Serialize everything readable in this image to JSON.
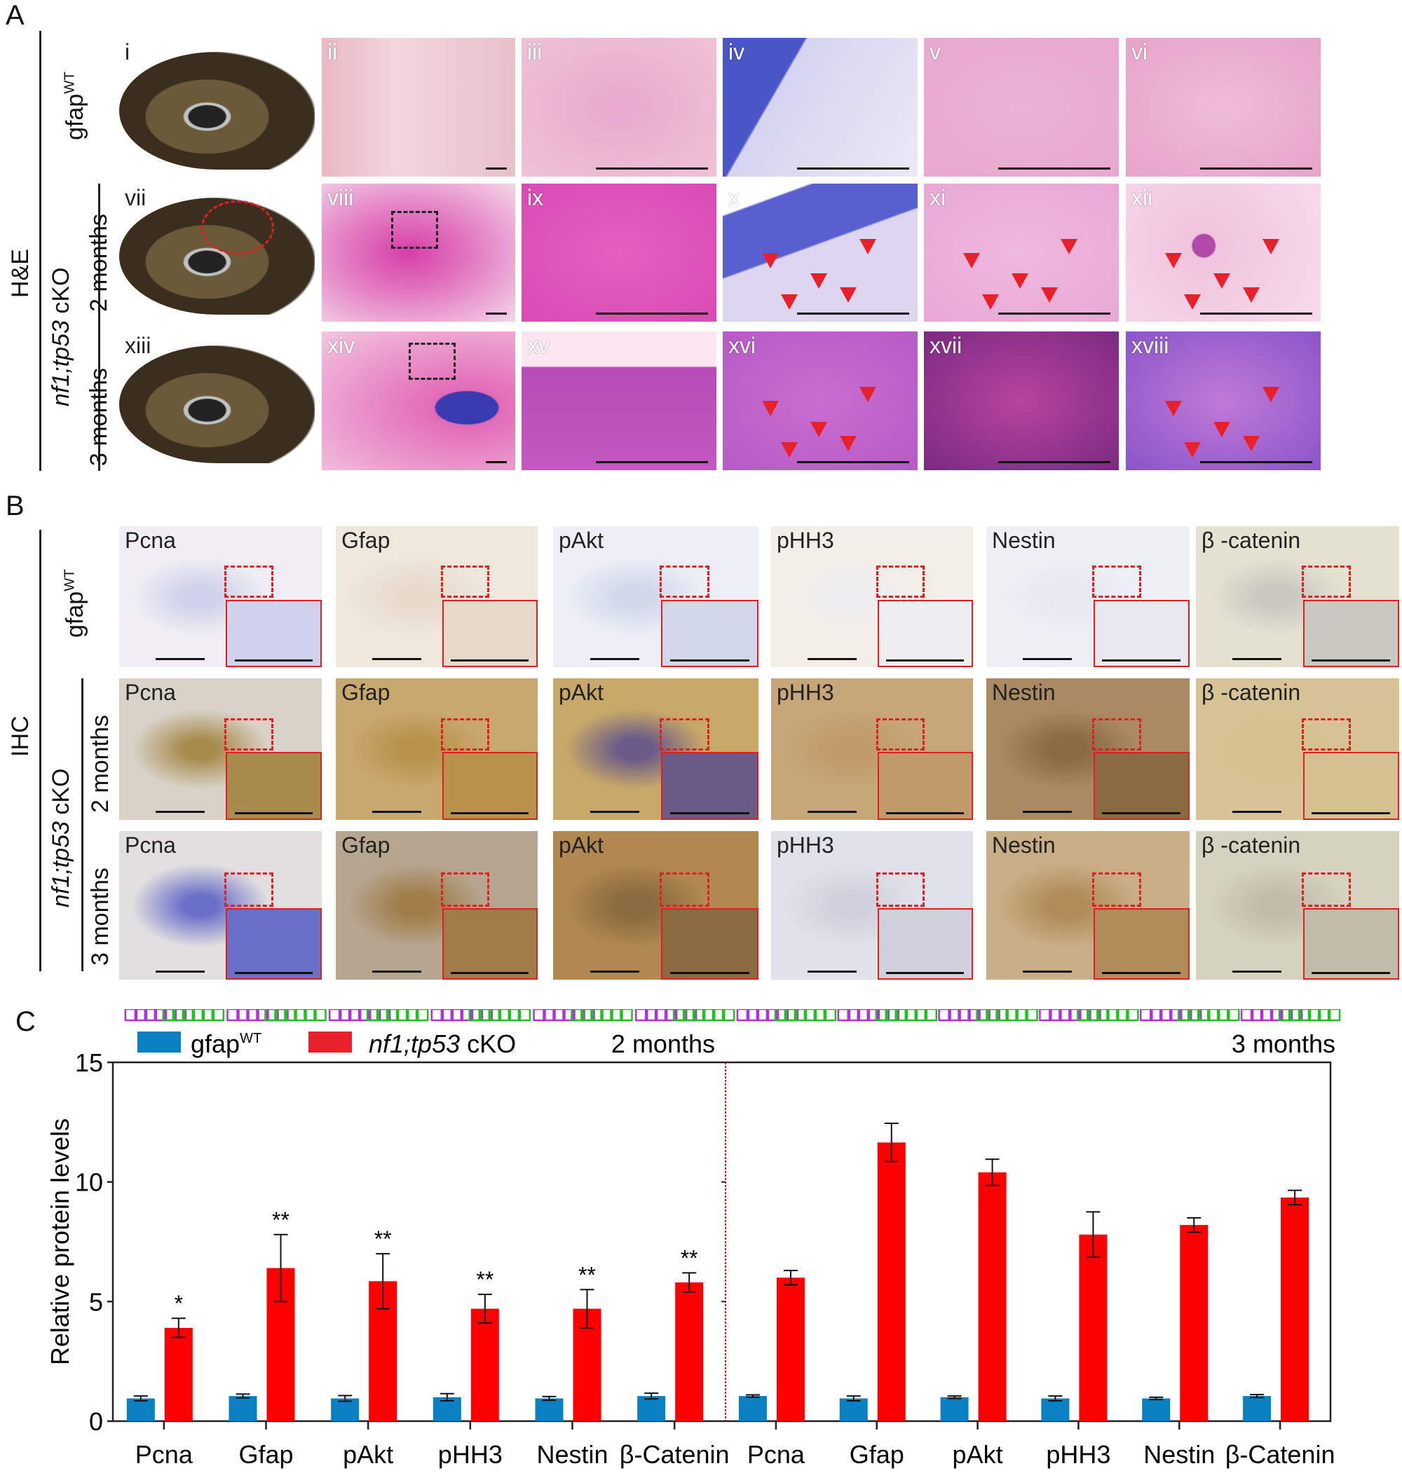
{
  "panel_labels": {
    "a": "A",
    "b": "B",
    "c": "C"
  },
  "panel_a": {
    "method": "H&E",
    "group_wt": "gfap",
    "group_wt_sup": "WT",
    "group_ko_italic": "nf1;tp53",
    "group_ko_rest": " cKO",
    "age_2": "2 months",
    "age_3": "3 months",
    "rows": [
      {
        "labels": [
          "i",
          "ii",
          "iii",
          "iv",
          "v",
          "vi"
        ]
      },
      {
        "labels": [
          "vii",
          "viii",
          "ix",
          "x",
          "xi",
          "xii"
        ]
      },
      {
        "labels": [
          "xiii",
          "xiv",
          "xv",
          "xvi",
          "xvii",
          "xviii"
        ]
      }
    ]
  },
  "panel_b": {
    "method": "IHC",
    "group_wt": "gfap",
    "group_wt_sup": "WT",
    "group_ko_italic": "nf1;tp53",
    "group_ko_rest": " cKO",
    "age_2": "2 months",
    "age_3": "3 months",
    "stains": [
      "Pcna",
      "Gfap",
      "pAkt",
      "pHH3",
      "Nestin",
      "β -catenin"
    ]
  },
  "chart_data": {
    "type": "bar",
    "ylabel": "Relative protein levels",
    "ylim": [
      0,
      15
    ],
    "yticks": [
      "0",
      "5",
      "10",
      "15"
    ],
    "legend": [
      {
        "name": "gfap",
        "sup": "WT",
        "color": "#0a7fc2"
      },
      {
        "name_italic": "nf1;tp53",
        "name": " cKO",
        "color": "#e8202a"
      }
    ],
    "panels": [
      {
        "title": "2 months",
        "categories": [
          "Pcna",
          "Gfap",
          "pAkt",
          "pHH3",
          "Nestin",
          "β-Catenin"
        ],
        "series": [
          {
            "name": "gfapWT",
            "values": [
              0.95,
              1.05,
              0.95,
              1.0,
              0.95,
              1.05
            ],
            "errors": [
              0.1,
              0.08,
              0.12,
              0.15,
              0.08,
              0.12
            ],
            "points": [
              [
                0.9,
                1.0,
                1.15
              ],
              [
                1.0,
                1.1,
                1.2
              ],
              [
                0.85,
                1.0,
                1.15
              ],
              [
                0.9,
                1.0,
                1.25
              ],
              [
                0.85,
                0.95,
                1.05
              ],
              [
                1.0,
                1.05,
                1.25
              ]
            ]
          },
          {
            "name": "nf1;tp53 cKO",
            "values": [
              3.9,
              6.4,
              5.85,
              4.7,
              4.7,
              5.8
            ],
            "errors": [
              0.4,
              1.4,
              1.15,
              0.6,
              0.8,
              0.4
            ],
            "points": [
              [
                3.4,
                4.1,
                4.3
              ],
              [
                5.3,
                6.1,
                8.0
              ],
              [
                4.5,
                6.3,
                6.9
              ],
              [
                4.0,
                4.9,
                5.2
              ],
              [
                3.7,
                5.0,
                5.3
              ],
              [
                5.3,
                5.9,
                6.1
              ]
            ]
          }
        ],
        "significance": [
          "*",
          "**",
          "**",
          "**",
          "**",
          "**"
        ]
      },
      {
        "title": "3 months",
        "categories": [
          "Pcna",
          "Gfap",
          "pAkt",
          "pHH3",
          "Nestin",
          "β-Catenin"
        ],
        "series": [
          {
            "name": "gfapWT",
            "values": [
              1.05,
              0.95,
              1.0,
              0.95,
              0.95,
              1.05
            ],
            "errors": [
              0.05,
              0.1,
              0.05,
              0.1,
              0.05,
              0.06
            ],
            "points": [
              [
                0.95,
                1.05,
                1.1
              ],
              [
                0.8,
                1.0,
                1.2
              ],
              [
                0.95,
                1.0,
                1.1
              ],
              [
                0.95,
                1.0,
                1.2
              ],
              [
                0.9,
                1.0,
                1.05
              ],
              [
                0.95,
                1.05,
                1.2
              ]
            ]
          },
          {
            "name": "nf1;tp53 cKO",
            "values": [
              6.0,
              11.65,
              10.4,
              7.8,
              8.2,
              9.35
            ],
            "errors": [
              0.3,
              0.8,
              0.55,
              0.95,
              0.3,
              0.3
            ],
            "points": [
              [
                5.4,
                6.3,
                6.4
              ],
              [
                10.2,
                12.0,
                12.9
              ],
              [
                9.7,
                10.0,
                11.5
              ],
              [
                6.3,
                7.6,
                9.6
              ],
              [
                8.0,
                8.1,
                8.8
              ],
              [
                8.8,
                9.6,
                9.7
              ]
            ]
          }
        ],
        "significance": []
      }
    ]
  }
}
